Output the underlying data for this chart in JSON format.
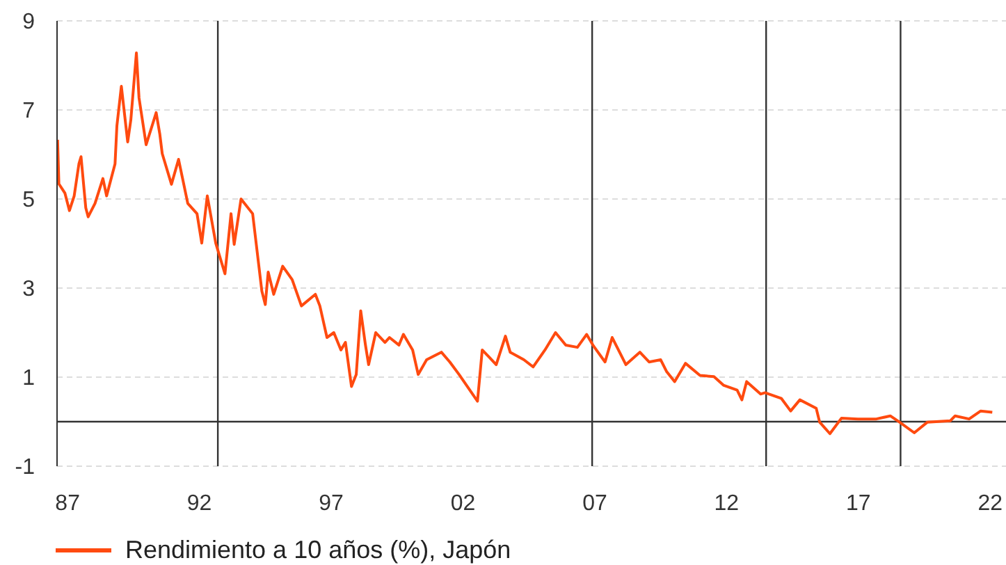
{
  "chart_data": {
    "type": "line",
    "x": [
      1986.62,
      1986.67,
      1986.9,
      1987.07,
      1987.25,
      1987.43,
      1987.51,
      1987.69,
      1987.78,
      1988.04,
      1988.34,
      1988.48,
      1988.8,
      1988.87,
      1989.04,
      1989.28,
      1989.4,
      1989.61,
      1989.71,
      1989.98,
      1990.24,
      1990.36,
      1990.5,
      1990.59,
      1990.94,
      1991.21,
      1991.56,
      1991.91,
      1992.09,
      1992.3,
      1992.62,
      1992.97,
      1993.2,
      1993.32,
      1993.58,
      1994.02,
      1994.37,
      1994.5,
      1994.61,
      1994.82,
      1995.16,
      1995.52,
      1995.87,
      1996.4,
      1996.57,
      1996.84,
      1997.1,
      1997.37,
      1997.54,
      1997.77,
      1997.95,
      1998.12,
      1998.3,
      1998.42,
      1998.69,
      1999.04,
      1999.21,
      1999.57,
      1999.74,
      2000.09,
      2000.3,
      2000.62,
      2001.18,
      2001.5,
      2001.85,
      2002.55,
      2002.73,
      2002.99,
      2003.26,
      2003.61,
      2003.79,
      2004.31,
      2004.66,
      2005.11,
      2005.51,
      2005.9,
      2006.34,
      2006.69,
      2006.95,
      2007.39,
      2007.66,
      2008.18,
      2008.71,
      2009.06,
      2009.5,
      2009.73,
      2010.03,
      2010.44,
      2010.99,
      2011.52,
      2011.88,
      2012.4,
      2012.58,
      2012.76,
      2013.29,
      2013.46,
      2014.08,
      2014.43,
      2014.78,
      2015.4,
      2015.53,
      2015.92,
      2016.36,
      2016.98,
      2017.68,
      2018.21,
      2018.56,
      2019.12,
      2019.62,
      2020.49,
      2020.67,
      2021.2,
      2021.64,
      2022.08
    ],
    "series": [
      {
        "name": "Rendimiento a 10 años (%), Japón",
        "color": "#ff4a0f",
        "values": [
          6.33,
          5.34,
          5.13,
          4.74,
          5.07,
          5.79,
          5.95,
          4.8,
          4.6,
          4.9,
          5.46,
          5.07,
          5.79,
          6.64,
          7.53,
          6.28,
          6.78,
          8.28,
          7.27,
          6.22,
          6.71,
          6.94,
          6.45,
          6.02,
          5.33,
          5.89,
          4.9,
          4.67,
          4.01,
          5.07,
          4.01,
          3.32,
          4.67,
          3.98,
          5.0,
          4.67,
          2.93,
          2.63,
          3.36,
          2.86,
          3.49,
          3.19,
          2.6,
          2.86,
          2.6,
          1.89,
          2.0,
          1.61,
          1.78,
          0.79,
          1.06,
          2.49,
          1.72,
          1.28,
          2.0,
          1.78,
          1.89,
          1.72,
          1.96,
          1.61,
          1.06,
          1.39,
          1.56,
          1.34,
          1.06,
          0.46,
          1.61,
          1.45,
          1.28,
          1.92,
          1.56,
          1.39,
          1.23,
          1.61,
          2.0,
          1.72,
          1.67,
          1.96,
          1.7,
          1.34,
          1.89,
          1.28,
          1.56,
          1.34,
          1.39,
          1.12,
          0.9,
          1.31,
          1.04,
          1.01,
          0.82,
          0.71,
          0.49,
          0.9,
          0.62,
          0.65,
          0.52,
          0.24,
          0.49,
          0.3,
          -0.01,
          -0.27,
          0.08,
          0.06,
          0.06,
          0.13,
          -0.01,
          -0.25,
          -0.01,
          0.02,
          0.13,
          0.06,
          0.24,
          0.21
        ]
      }
    ],
    "xlim": [
      1986.6,
      2022.6
    ],
    "xticks": [
      {
        "value": 1987,
        "label": "87"
      },
      {
        "value": 1992,
        "label": "92"
      },
      {
        "value": 1997,
        "label": "97"
      },
      {
        "value": 2002,
        "label": "02"
      },
      {
        "value": 2007,
        "label": "07"
      },
      {
        "value": 2012,
        "label": "12"
      },
      {
        "value": 2017,
        "label": "17"
      },
      {
        "value": 2022,
        "label": "22"
      }
    ],
    "ylim": [
      -1,
      9
    ],
    "yticks": [
      -1,
      1,
      3,
      5,
      7,
      9
    ],
    "grid": "y",
    "legend": "bottom",
    "line_style": "solid",
    "ref_lines": [
      {
        "axis": "y",
        "value": 0,
        "color": "#333333"
      },
      {
        "axis": "x",
        "value": 1992.7,
        "color": "#333333"
      },
      {
        "axis": "x",
        "value": 2006.9,
        "color": "#333333"
      },
      {
        "axis": "x",
        "value": 2013.5,
        "color": "#333333"
      },
      {
        "axis": "x",
        "value": 2018.6,
        "color": "#333333"
      }
    ]
  }
}
